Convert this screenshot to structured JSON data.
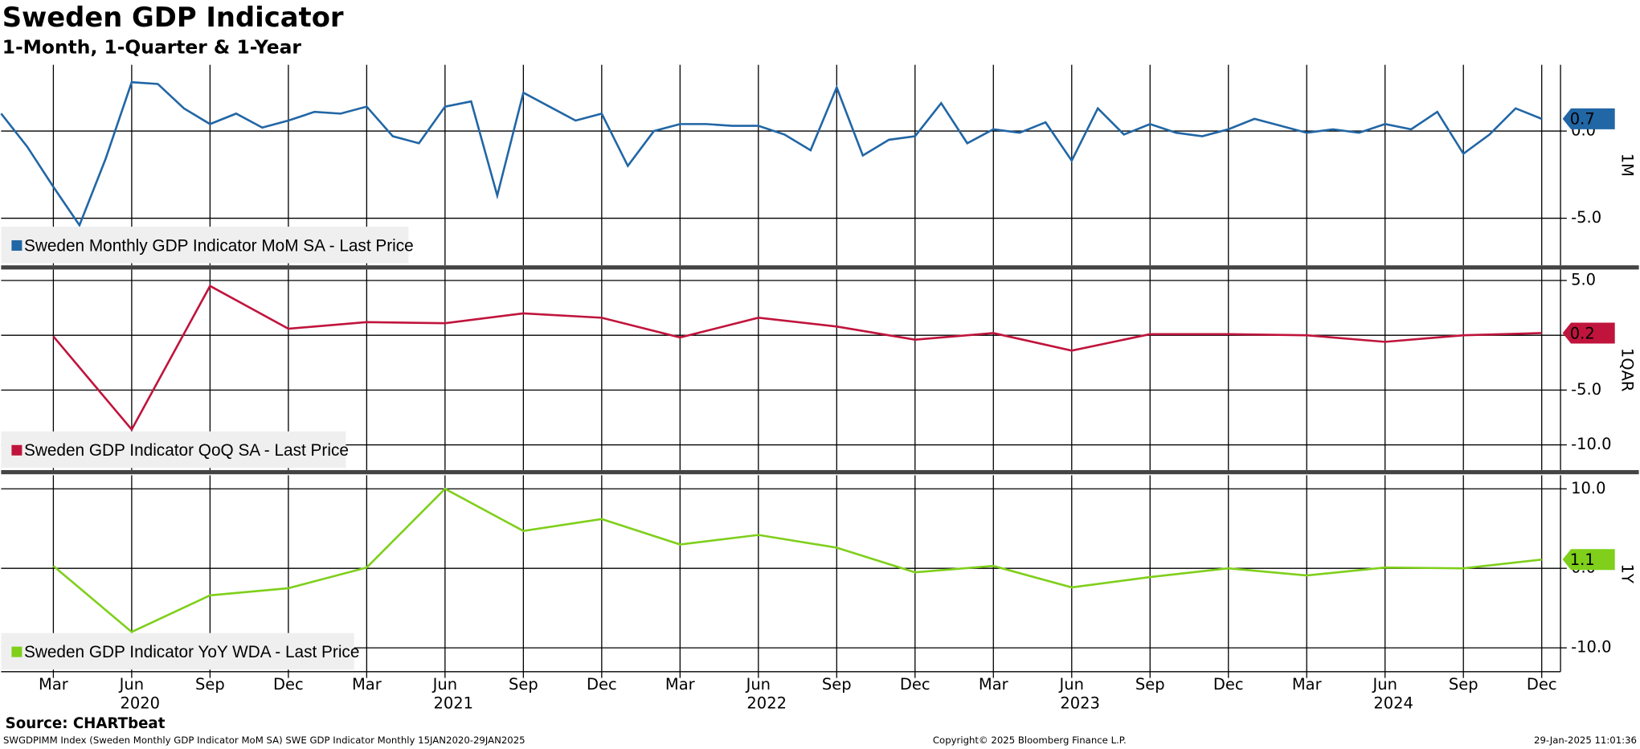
{
  "title": "Sweden GDP Indicator",
  "subtitle": "1-Month, 1-Quarter & 1-Year",
  "source": "Source: CHARTbeat",
  "footer": [
    "SWGDPIMM Index (Sweden Monthly GDP Indicator MoM SA) SWE GDP Indicator  Monthly 15JAN2020-29JAN2025",
    "Copyright© 2025 Bloomberg Finance L.P.",
    "29-Jan-2025 11:01:36"
  ],
  "chart_data": [
    {
      "type": "line",
      "y_label": "1M",
      "xlim": [
        "2020-01",
        "2025-01"
      ],
      "ylim": [
        -7.7,
        3.8
      ],
      "yticks": [
        {
          "value": 0,
          "label": "0.0"
        },
        {
          "value": -5,
          "label": "-5.0"
        }
      ],
      "grid": true,
      "x": [
        "2020-01",
        "2020-02",
        "2020-03",
        "2020-04",
        "2020-05",
        "2020-06",
        "2020-07",
        "2020-08",
        "2020-09",
        "2020-10",
        "2020-11",
        "2020-12",
        "2021-01",
        "2021-02",
        "2021-03",
        "2021-04",
        "2021-05",
        "2021-06",
        "2021-07",
        "2021-08",
        "2021-09",
        "2021-10",
        "2021-11",
        "2021-12",
        "2022-01",
        "2022-02",
        "2022-03",
        "2022-04",
        "2022-05",
        "2022-06",
        "2022-07",
        "2022-08",
        "2022-09",
        "2022-10",
        "2022-11",
        "2022-12",
        "2023-01",
        "2023-02",
        "2023-03",
        "2023-04",
        "2023-05",
        "2023-06",
        "2023-07",
        "2023-08",
        "2023-09",
        "2023-10",
        "2023-11",
        "2023-12",
        "2024-01",
        "2024-02",
        "2024-03",
        "2024-04",
        "2024-05",
        "2024-06",
        "2024-07",
        "2024-08",
        "2024-09",
        "2024-10",
        "2024-11",
        "2024-12"
      ],
      "series": [
        {
          "name": "Sweden Monthly GDP Indicator MoM SA - Last Price",
          "color": "#2166a5",
          "values": [
            1.0,
            -0.9,
            -3.2,
            -5.4,
            -1.6,
            2.8,
            2.7,
            1.3,
            0.4,
            1.0,
            0.2,
            0.6,
            1.1,
            1.0,
            1.4,
            -0.3,
            -0.7,
            1.4,
            1.7,
            -3.7,
            2.2,
            1.4,
            0.6,
            1.0,
            -2.0,
            0.0,
            0.4,
            0.4,
            0.3,
            0.3,
            -0.2,
            -1.1,
            2.5,
            -1.4,
            -0.5,
            -0.3,
            1.6,
            -0.7,
            0.1,
            -0.1,
            0.5,
            -1.7,
            1.3,
            -0.2,
            0.4,
            -0.1,
            -0.3,
            0.1,
            0.7,
            0.3,
            -0.1,
            0.1,
            -0.1,
            0.4,
            0.1,
            1.1,
            -1.3,
            -0.2,
            1.3,
            0.7
          ],
          "value_labels": [
            null,
            null,
            null,
            null,
            null,
            null,
            null,
            null,
            null,
            null,
            null,
            null,
            null,
            null,
            null,
            null,
            null,
            null,
            null,
            null,
            null,
            null,
            null,
            null,
            null,
            null,
            null,
            null,
            null,
            null,
            null,
            null,
            null,
            null,
            null,
            null,
            null,
            null,
            null,
            null,
            null,
            null,
            null,
            null,
            null,
            null,
            null,
            null,
            null,
            null,
            null,
            null,
            null,
            null,
            null,
            null,
            null,
            null,
            null,
            "0.7"
          ]
        }
      ]
    },
    {
      "type": "line",
      "y_label": "1QAR",
      "xlim": [
        "2020-01",
        "2025-01"
      ],
      "ylim": [
        -12.3,
        6.0
      ],
      "yticks": [
        {
          "value": 5,
          "label": "5.0"
        },
        {
          "value": 0,
          "label": "0.0"
        },
        {
          "value": -5,
          "label": "-5.0"
        },
        {
          "value": -10,
          "label": "-10.0"
        }
      ],
      "grid": true,
      "x": [
        "2020-03",
        "2020-06",
        "2020-09",
        "2020-12",
        "2021-03",
        "2021-06",
        "2021-09",
        "2021-12",
        "2022-03",
        "2022-06",
        "2022-09",
        "2022-12",
        "2023-03",
        "2023-06",
        "2023-09",
        "2023-12",
        "2024-03",
        "2024-06",
        "2024-09",
        "2024-12"
      ],
      "series": [
        {
          "name": "Sweden GDP Indicator QoQ SA - Last Price",
          "color": "#c0143c",
          "values": [
            -0.1,
            -8.6,
            4.5,
            0.6,
            1.2,
            1.1,
            2.0,
            1.6,
            -0.2,
            1.6,
            0.8,
            -0.4,
            0.2,
            -1.4,
            0.1,
            0.1,
            0.0,
            -0.6,
            0.0,
            0.2
          ],
          "value_labels": [
            null,
            null,
            null,
            null,
            null,
            null,
            null,
            null,
            null,
            null,
            null,
            null,
            null,
            null,
            null,
            null,
            null,
            null,
            null,
            "0.2"
          ]
        }
      ]
    },
    {
      "type": "line",
      "y_label": "1Y",
      "xlim": [
        "2020-01",
        "2025-01"
      ],
      "ylim": [
        -13.0,
        11.7
      ],
      "yticks": [
        {
          "value": 10,
          "label": "10.0"
        },
        {
          "value": 0,
          "label": "0.0"
        },
        {
          "value": -10,
          "label": "-10.0"
        }
      ],
      "grid": true,
      "x": [
        "2020-03",
        "2020-06",
        "2020-09",
        "2020-12",
        "2021-03",
        "2021-06",
        "2021-09",
        "2021-12",
        "2022-03",
        "2022-06",
        "2022-09",
        "2022-12",
        "2023-03",
        "2023-06",
        "2023-09",
        "2023-12",
        "2024-03",
        "2024-06",
        "2024-09",
        "2024-12"
      ],
      "series": [
        {
          "name": "Sweden GDP Indicator YoY WDA - Last Price",
          "color": "#7fcf1b",
          "values": [
            0.3,
            -8.0,
            -3.4,
            -2.5,
            0.1,
            10.0,
            4.7,
            6.2,
            3.0,
            4.2,
            2.6,
            -0.5,
            0.3,
            -2.4,
            -1.1,
            0.0,
            -0.9,
            0.1,
            0.0,
            1.1
          ],
          "value_labels": [
            null,
            null,
            null,
            null,
            null,
            null,
            null,
            null,
            null,
            null,
            null,
            null,
            null,
            null,
            null,
            null,
            null,
            null,
            null,
            "1.1"
          ]
        }
      ],
      "xticks": [
        {
          "value": "2020-03",
          "label": "Mar"
        },
        {
          "value": "2020-06",
          "label": "Jun"
        },
        {
          "value": "2020-09",
          "label": "Sep"
        },
        {
          "value": "2020-12",
          "label": "Dec"
        },
        {
          "value": "2021-03",
          "label": "Mar"
        },
        {
          "value": "2021-06",
          "label": "Jun"
        },
        {
          "value": "2021-09",
          "label": "Sep"
        },
        {
          "value": "2021-12",
          "label": "Dec"
        },
        {
          "value": "2022-03",
          "label": "Mar"
        },
        {
          "value": "2022-06",
          "label": "Jun"
        },
        {
          "value": "2022-09",
          "label": "Sep"
        },
        {
          "value": "2022-12",
          "label": "Dec"
        },
        {
          "value": "2023-03",
          "label": "Mar"
        },
        {
          "value": "2023-06",
          "label": "Jun"
        },
        {
          "value": "2023-09",
          "label": "Sep"
        },
        {
          "value": "2023-12",
          "label": "Dec"
        },
        {
          "value": "2024-03",
          "label": "Mar"
        },
        {
          "value": "2024-06",
          "label": "Jun"
        },
        {
          "value": "2024-09",
          "label": "Sep"
        },
        {
          "value": "2024-12",
          "label": "Dec"
        }
      ],
      "year_ticks": [
        {
          "value": "2020-06",
          "label": "2020"
        },
        {
          "value": "2021-06",
          "label": "2021"
        },
        {
          "value": "2022-06",
          "label": "2022"
        },
        {
          "value": "2023-06",
          "label": "2023"
        },
        {
          "value": "2024-06",
          "label": "2024"
        }
      ]
    }
  ]
}
